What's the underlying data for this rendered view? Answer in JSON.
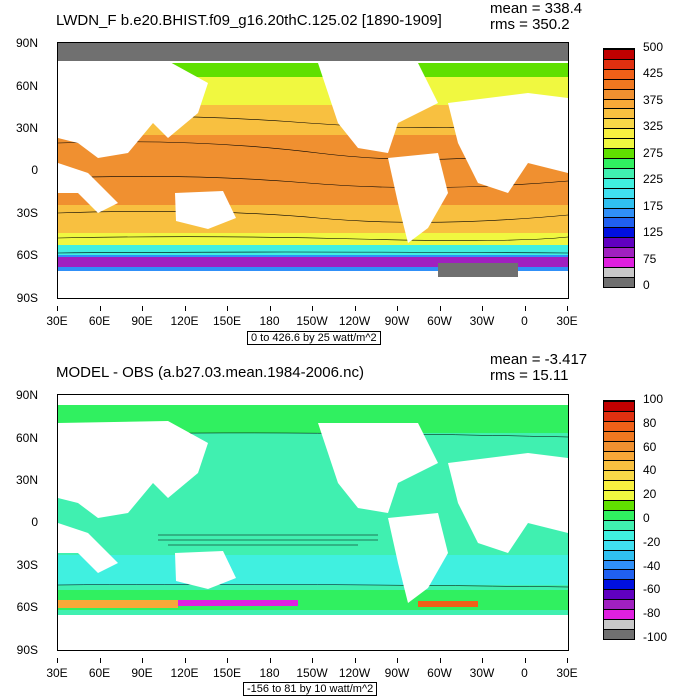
{
  "panels": [
    {
      "title": "LWDN_F b.e20.BHIST.f09_g16.20thC.125.02 [1890-1909]",
      "mean": "mean = 338.4",
      "rms": "rms = 350.2",
      "contour_info": "0 to 426.6 by 25 watt/m^2",
      "colorbar_labels": [
        "500",
        "425",
        "375",
        "325",
        "275",
        "225",
        "175",
        "125",
        "75",
        "0"
      ],
      "colorbar_colors": [
        "#c00000",
        "#e03010",
        "#f06018",
        "#f07820",
        "#f09030",
        "#f8a838",
        "#f8c040",
        "#f8d848",
        "#f8f040",
        "#f0f840",
        "#60e000",
        "#30f060",
        "#40f0b0",
        "#40f0e0",
        "#40e0f0",
        "#30c0f0",
        "#3090f8",
        "#2060f0",
        "#0010e0",
        "#6000c0",
        "#a020c0",
        "#e020e0",
        "#c8c8c8",
        "#707070"
      ]
    },
    {
      "title": "MODEL - OBS (a.b27.03.mean.1984-2006.nc)",
      "mean": "mean = -3.417",
      "rms": "rms = 15.11",
      "contour_info": "-156 to 81 by 10 watt/m^2",
      "colorbar_labels": [
        "100",
        "80",
        "60",
        "40",
        "20",
        "0",
        "-20",
        "-40",
        "-60",
        "-80",
        "-100"
      ],
      "colorbar_colors": [
        "#c00000",
        "#e03010",
        "#f06018",
        "#f07820",
        "#f09030",
        "#f8a838",
        "#f8c040",
        "#f8d848",
        "#f8f040",
        "#f0f840",
        "#60e000",
        "#30f060",
        "#40f0b0",
        "#40f0e0",
        "#40e0f0",
        "#30c0f0",
        "#3090f8",
        "#2060f0",
        "#0010e0",
        "#6000c0",
        "#a020c0",
        "#e020e0",
        "#c8c8c8",
        "#707070"
      ]
    }
  ],
  "lat_labels": [
    "90N",
    "60N",
    "30N",
    "0",
    "30S",
    "60S",
    "90S"
  ],
  "lon_labels": [
    "30E",
    "60E",
    "90E",
    "120E",
    "150E",
    "180",
    "150W",
    "120W",
    "90W",
    "60W",
    "30W",
    "0",
    "30E"
  ],
  "map_colors": {
    "land": "#ffffff",
    "sea_ice": "#707070",
    "panel1_tropics": "#f09030",
    "panel1_subtropics": "#f8c040",
    "panel1_midlat": "#f8f040",
    "panel2_ocean": "#40f0b0",
    "panel2_warm": "#f0f840"
  }
}
